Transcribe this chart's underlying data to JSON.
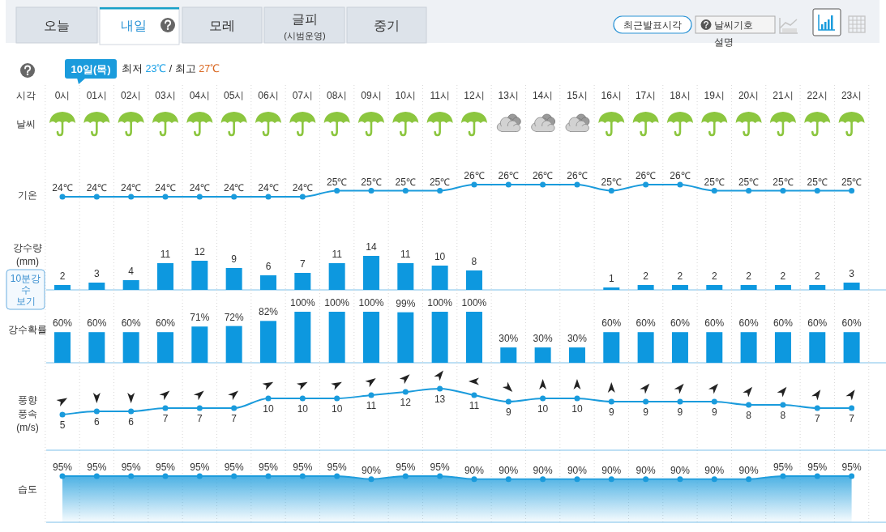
{
  "chart_data": [
    {
      "type": "other",
      "annotations": [
        "오늘",
        "내일",
        "모레",
        "글피",
        "(시범운영)",
        "중기",
        "최근발표시각",
        "날씨기호",
        "설명"
      ]
    },
    {
      "type": "line",
      "title": "10일(목)",
      "subtitle": "최저 23℃ / 최고 27℃",
      "xlabel": "시각",
      "ylabel": "기온",
      "annotations": [
        "날씨"
      ],
      "tick_labels": "x",
      "grid": "x",
      "marker": "circle",
      "color": "#1a9bdc",
      "categories": [
        "0시",
        "01시",
        "02시",
        "03시",
        "04시",
        "05시",
        "06시",
        "07시",
        "08시",
        "09시",
        "10시",
        "11시",
        "12시",
        "13시",
        "14시",
        "15시",
        "16시",
        "17시",
        "18시",
        "19시",
        "20시",
        "21시",
        "22시",
        "23시"
      ],
      "values": [
        24,
        24,
        24,
        24,
        24,
        24,
        24,
        24,
        25,
        25,
        25,
        25,
        26,
        26,
        26,
        26,
        25,
        26,
        26,
        25,
        25,
        25,
        25,
        25
      ],
      "value_labels": [
        "24℃",
        "24℃",
        "24℃",
        "24℃",
        "24℃",
        "24℃",
        "24℃",
        "24℃",
        "25℃",
        "25℃",
        "25℃",
        "25℃",
        "26℃",
        "26℃",
        "26℃",
        "26℃",
        "25℃",
        "26℃",
        "26℃",
        "25℃",
        "25℃",
        "25℃",
        "25℃",
        "25℃"
      ]
    },
    {
      "type": "bar",
      "ylabel": "강수량\n(mm)",
      "annotations": [
        "10분강수 보기"
      ],
      "grid": "x",
      "color": "#0d98df",
      "data_labels": true,
      "categories": [
        null,
        null,
        null,
        null,
        null,
        null,
        null,
        null,
        null,
        null,
        null,
        null,
        null,
        null,
        null,
        null,
        null,
        null,
        null,
        null,
        null,
        null,
        null,
        null
      ],
      "values": [
        2,
        3,
        4,
        11,
        12,
        9,
        6,
        7,
        11,
        14,
        11,
        10,
        8,
        null,
        null,
        null,
        1,
        2,
        2,
        2,
        2,
        2,
        2,
        3
      ]
    },
    {
      "type": "bar",
      "ylabel": "강수확률",
      "grid": "x",
      "color": "#0d98df",
      "ylim": [
        0,
        100
      ],
      "categories": [
        null,
        null,
        null,
        null,
        null,
        null,
        null,
        null,
        null,
        null,
        null,
        null,
        null,
        null,
        null,
        null,
        null,
        null,
        null,
        null,
        null,
        null,
        null,
        null
      ],
      "values": [
        60,
        60,
        60,
        60,
        71,
        72,
        82,
        100,
        100,
        100,
        99,
        100,
        100,
        30,
        30,
        30,
        60,
        60,
        60,
        60,
        60,
        60,
        60,
        60
      ],
      "value_labels": [
        "60%",
        "60%",
        "60%",
        "60%",
        "71%",
        "72%",
        "82%",
        "100%",
        "100%",
        "100%",
        "99%",
        "100%",
        "100%",
        "30%",
        "30%",
        "30%",
        "60%",
        "60%",
        "60%",
        "60%",
        "60%",
        "60%",
        "60%",
        "60%"
      ]
    },
    {
      "type": "line",
      "ylabel": "풍향\n풍속\n(m/s)",
      "grid": "x",
      "marker": "circle",
      "color": "#1a9bdc",
      "data_labels": true,
      "categories": [
        null,
        null,
        null,
        null,
        null,
        null,
        null,
        null,
        null,
        null,
        null,
        null,
        null,
        null,
        null,
        null,
        null,
        null,
        null,
        null,
        null,
        null,
        null,
        null
      ],
      "values": [
        5,
        6,
        6,
        7,
        7,
        7,
        10,
        10,
        10,
        11,
        12,
        13,
        11,
        9,
        10,
        10,
        9,
        9,
        9,
        9,
        8,
        8,
        7,
        7
      ]
    },
    {
      "type": "area",
      "ylabel": "습도",
      "grid": "x",
      "marker": "circle",
      "color": "#1a9bdc",
      "ylim": [
        20,
        137
      ],
      "categories": [
        null,
        null,
        null,
        null,
        null,
        null,
        null,
        null,
        null,
        null,
        null,
        null,
        null,
        null,
        null,
        null,
        null,
        null,
        null,
        null,
        null,
        null,
        null,
        null
      ],
      "values": [
        95,
        95,
        95,
        95,
        95,
        95,
        95,
        95,
        95,
        90,
        95,
        95,
        90,
        90,
        90,
        90,
        90,
        90,
        90,
        90,
        90,
        95,
        95,
        95
      ],
      "value_labels": [
        "95%",
        "95%",
        "95%",
        "95%",
        "95%",
        "95%",
        "95%",
        "95%",
        "95%",
        "90%",
        "95%",
        "95%",
        "90%",
        "90%",
        "90%",
        "90%",
        "90%",
        "90%",
        "90%",
        "90%",
        "90%",
        "95%",
        "95%",
        "95%"
      ]
    }
  ]
}
